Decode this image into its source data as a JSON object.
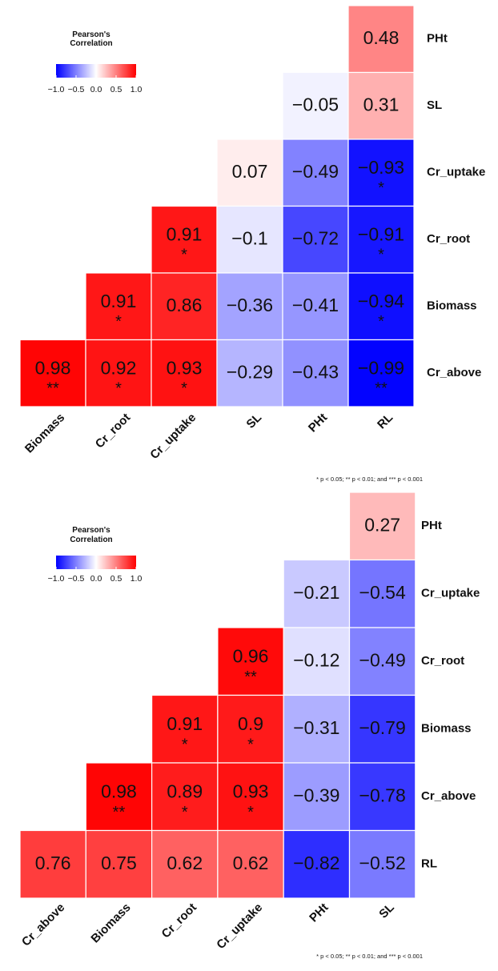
{
  "colors": {
    "negative": "#0000ff",
    "zero": "#ffffff",
    "positive": "#ff0000"
  },
  "chart_data": [
    {
      "type": "heatmap",
      "title": "",
      "legend": {
        "title_lines": [
          "Pearson's",
          "Correlation"
        ],
        "ticks": [
          -1.0,
          -0.5,
          0.0,
          0.5,
          1.0
        ],
        "tick_labels": [
          "−1.0",
          "−0.5",
          "0.0",
          "0.5",
          "1.0"
        ],
        "placement": "top-left"
      },
      "columns": [
        "Biomass",
        "Cr_root",
        "Cr_uptake",
        "SL",
        "PHt",
        "RL"
      ],
      "rows": [
        {
          "label": "PHt",
          "start": 5,
          "values": [
            0.48
          ],
          "labels": [
            "0.48"
          ],
          "sig": [
            ""
          ]
        },
        {
          "label": "SL",
          "start": 4,
          "values": [
            -0.05,
            0.31
          ],
          "labels": [
            "−0.05",
            "0.31"
          ],
          "sig": [
            "",
            ""
          ]
        },
        {
          "label": "Cr_uptake",
          "start": 3,
          "values": [
            0.07,
            -0.49,
            -0.93
          ],
          "labels": [
            "0.07",
            "−0.49",
            "−0.93"
          ],
          "sig": [
            "",
            "",
            "*"
          ]
        },
        {
          "label": "Cr_root",
          "start": 2,
          "values": [
            0.91,
            -0.1,
            -0.72,
            -0.91
          ],
          "labels": [
            "0.91",
            "−0.1",
            "−0.72",
            "−0.91"
          ],
          "sig": [
            "*",
            "",
            "",
            "*"
          ]
        },
        {
          "label": "Biomass",
          "start": 1,
          "values": [
            0.91,
            0.86,
            -0.36,
            -0.41,
            -0.94
          ],
          "labels": [
            "0.91",
            "0.86",
            "−0.36",
            "−0.41",
            "−0.94"
          ],
          "sig": [
            "*",
            "",
            "",
            "",
            "*"
          ]
        },
        {
          "label": "Cr_above",
          "start": 0,
          "values": [
            0.98,
            0.92,
            0.93,
            -0.29,
            -0.43,
            -0.99
          ],
          "labels": [
            "0.98",
            "0.92",
            "0.93",
            "−0.29",
            "−0.43",
            "−0.99"
          ],
          "sig": [
            "**",
            "*",
            "*",
            "",
            "",
            "**"
          ]
        }
      ],
      "footnote": "* p < 0.05; ** p < 0.01; and *** p < 0.001"
    },
    {
      "type": "heatmap",
      "title": "",
      "legend": {
        "title_lines": [
          "Pearson's",
          "Correlation"
        ],
        "ticks": [
          -1.0,
          -0.5,
          0.0,
          0.5,
          1.0
        ],
        "tick_labels": [
          "−1.0",
          "−0.5",
          "0.0",
          "0.5",
          "1.0"
        ],
        "placement": "top-left"
      },
      "columns": [
        "Cr_above",
        "Biomass",
        "Cr_root",
        "Cr_uptake",
        "PHt",
        "SL"
      ],
      "rows": [
        {
          "label": "PHt",
          "start": 5,
          "values": [
            0.27
          ],
          "labels": [
            "0.27"
          ],
          "sig": [
            ""
          ]
        },
        {
          "label": "Cr_uptake",
          "start": 4,
          "values": [
            -0.21,
            -0.54
          ],
          "labels": [
            "−0.21",
            "−0.54"
          ],
          "sig": [
            "",
            ""
          ]
        },
        {
          "label": "Cr_root",
          "start": 3,
          "values": [
            0.96,
            -0.12,
            -0.49
          ],
          "labels": [
            "0.96",
            "−0.12",
            "−0.49"
          ],
          "sig": [
            "**",
            "",
            ""
          ]
        },
        {
          "label": "Biomass",
          "start": 2,
          "values": [
            0.91,
            0.9,
            -0.31,
            -0.79
          ],
          "labels": [
            "0.91",
            "0.9",
            "−0.31",
            "−0.79"
          ],
          "sig": [
            "*",
            "*",
            "",
            ""
          ]
        },
        {
          "label": "Cr_above",
          "start": 1,
          "values": [
            0.98,
            0.89,
            0.93,
            -0.39,
            -0.78
          ],
          "labels": [
            "0.98",
            "0.89",
            "0.93",
            "−0.39",
            "−0.78"
          ],
          "sig": [
            "**",
            "*",
            "*",
            "",
            ""
          ]
        },
        {
          "label": "RL",
          "start": 0,
          "values": [
            0.76,
            0.75,
            0.62,
            0.62,
            -0.82,
            -0.52
          ],
          "labels": [
            "0.76",
            "0.75",
            "0.62",
            "0.62",
            "−0.82",
            "−0.52"
          ],
          "sig": [
            "",
            "",
            "",
            "",
            "",
            ""
          ]
        }
      ],
      "footnote": "* p < 0.05; ** p < 0.01; and *** p < 0.001"
    }
  ]
}
